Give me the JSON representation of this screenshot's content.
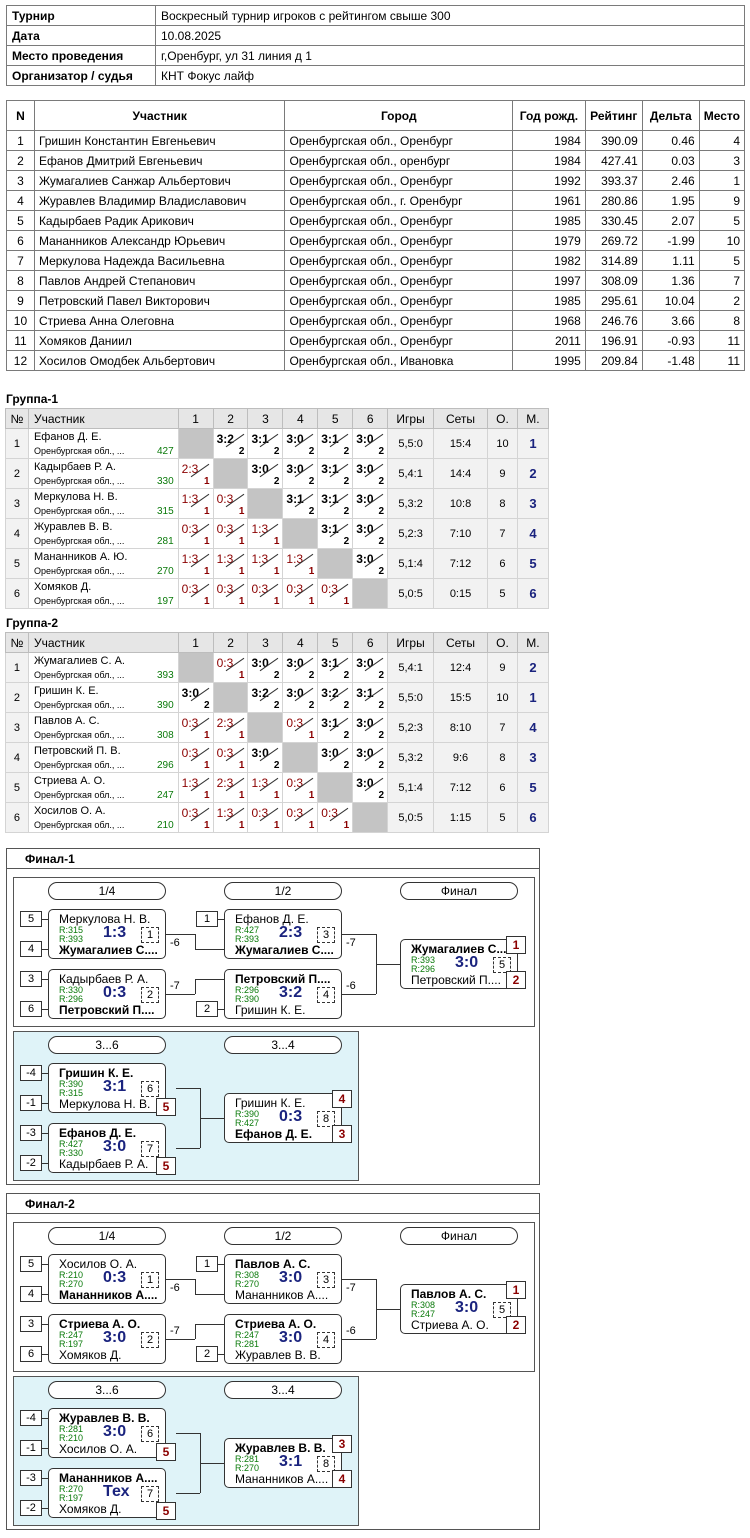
{
  "info": {
    "rows": [
      {
        "k": "Турнир",
        "v": "Воскресный турнир игроков с рейтингом свыше 300"
      },
      {
        "k": "Дата",
        "v": "10.08.2025"
      },
      {
        "k": "Место проведения",
        "v": "г,Оренбург, ул 31 линия д 1"
      },
      {
        "k": "Организатор / судья",
        "v": "КНТ Фокус лайф"
      }
    ]
  },
  "participants": {
    "headers": [
      "N",
      "Участник",
      "Город",
      "Год рожд.",
      "Рейтинг",
      "Дельта",
      "Место"
    ],
    "rows": [
      [
        "1",
        "Гришин Константин Евгеньевич",
        "Оренбургская обл., Оренбург",
        "1984",
        "390.09",
        "0.46",
        "4"
      ],
      [
        "2",
        "Ефанов Дмитрий Евгеньевич",
        "Оренбургская обл., оренбург",
        "1984",
        "427.41",
        "0.03",
        "3"
      ],
      [
        "3",
        "Жумагалиев Санжар Альбертович",
        "Оренбургская обл., Оренбург",
        "1992",
        "393.37",
        "2.46",
        "1"
      ],
      [
        "4",
        "Журавлев Владимир Владиславович",
        "Оренбургская обл., г. Оренбург",
        "1961",
        "280.86",
        "1.95",
        "9"
      ],
      [
        "5",
        "Кадырбаев Радик Арикович",
        "Оренбургская обл., Оренбург",
        "1985",
        "330.45",
        "2.07",
        "5"
      ],
      [
        "6",
        "Мананников Александр Юрьевич",
        "Оренбургская обл., Оренбург",
        "1979",
        "269.72",
        "-1.99",
        "10"
      ],
      [
        "7",
        "Меркулова Надежда Васильевна",
        "Оренбургская обл., Оренбург",
        "1982",
        "314.89",
        "1.11",
        "5"
      ],
      [
        "8",
        "Павлов Андрей Степанович",
        "Оренбургская обл., Оренбург",
        "1997",
        "308.09",
        "1.36",
        "7"
      ],
      [
        "9",
        "Петровский Павел Викторович",
        "Оренбургская обл., Оренбург",
        "1985",
        "295.61",
        "10.04",
        "2"
      ],
      [
        "10",
        "Стриева Анна Олеговна",
        "Оренбургская обл., Оренбург",
        "1968",
        "246.76",
        "3.66",
        "8"
      ],
      [
        "11",
        "Хомяков Даниил",
        "Оренбургская обл., Оренбург",
        "2011",
        "196.91",
        "-0.93",
        "11"
      ],
      [
        "12",
        "Хосилов Омодбек Альбертович",
        "Оренбургская обл., Ивановка",
        "1995",
        "209.84",
        "-1.48",
        "11"
      ]
    ]
  },
  "groups": [
    {
      "title": "Группа-1",
      "headers": [
        "№",
        "Участник",
        "1",
        "2",
        "3",
        "4",
        "5",
        "6",
        "Игры",
        "Сеты",
        "О.",
        "М."
      ],
      "rows": [
        {
          "n": "1",
          "name": "Ефанов Д. Е.",
          "city": "Оренбургская обл., ...",
          "rating": "427",
          "cells": [
            null,
            [
              "3:2",
              "2"
            ],
            [
              "3:1",
              "2"
            ],
            [
              "3:0",
              "2"
            ],
            [
              "3:1",
              "2"
            ],
            [
              "3:0",
              "2"
            ]
          ],
          "games": "5,5:0",
          "sets": "15:4",
          "o": "10",
          "m": "1"
        },
        {
          "n": "2",
          "name": "Кадырбаев Р. А.",
          "city": "Оренбургская обл., ...",
          "rating": "330",
          "cells": [
            [
              "2:3",
              "1"
            ],
            null,
            [
              "3:0",
              "2"
            ],
            [
              "3:0",
              "2"
            ],
            [
              "3:1",
              "2"
            ],
            [
              "3:0",
              "2"
            ]
          ],
          "games": "5,4:1",
          "sets": "14:4",
          "o": "9",
          "m": "2"
        },
        {
          "n": "3",
          "name": "Меркулова Н. В.",
          "city": "Оренбургская обл., ...",
          "rating": "315",
          "cells": [
            [
              "1:3",
              "1"
            ],
            [
              "0:3",
              "1"
            ],
            null,
            [
              "3:1",
              "2"
            ],
            [
              "3:1",
              "2"
            ],
            [
              "3:0",
              "2"
            ]
          ],
          "games": "5,3:2",
          "sets": "10:8",
          "o": "8",
          "m": "3"
        },
        {
          "n": "4",
          "name": "Журавлев В. В.",
          "city": "Оренбургская обл., ...",
          "rating": "281",
          "cells": [
            [
              "0:3",
              "1"
            ],
            [
              "0:3",
              "1"
            ],
            [
              "1:3",
              "1"
            ],
            null,
            [
              "3:1",
              "2"
            ],
            [
              "3:0",
              "2"
            ]
          ],
          "games": "5,2:3",
          "sets": "7:10",
          "o": "7",
          "m": "4"
        },
        {
          "n": "5",
          "name": "Мананников А. Ю.",
          "city": "Оренбургская обл., ...",
          "rating": "270",
          "cells": [
            [
              "1:3",
              "1"
            ],
            [
              "1:3",
              "1"
            ],
            [
              "1:3",
              "1"
            ],
            [
              "1:3",
              "1"
            ],
            null,
            [
              "3:0",
              "2"
            ]
          ],
          "games": "5,1:4",
          "sets": "7:12",
          "o": "6",
          "m": "5"
        },
        {
          "n": "6",
          "name": "Хомяков Д.",
          "city": "Оренбургская обл., ...",
          "rating": "197",
          "cells": [
            [
              "0:3",
              "1"
            ],
            [
              "0:3",
              "1"
            ],
            [
              "0:3",
              "1"
            ],
            [
              "0:3",
              "1"
            ],
            [
              "0:3",
              "1"
            ],
            null
          ],
          "games": "5,0:5",
          "sets": "0:15",
          "o": "5",
          "m": "6"
        }
      ]
    },
    {
      "title": "Группа-2",
      "headers": [
        "№",
        "Участник",
        "1",
        "2",
        "3",
        "4",
        "5",
        "6",
        "Игры",
        "Сеты",
        "О.",
        "М."
      ],
      "rows": [
        {
          "n": "1",
          "name": "Жумагалиев С. А.",
          "city": "Оренбургская обл., ...",
          "rating": "393",
          "cells": [
            null,
            [
              "0:3",
              "1"
            ],
            [
              "3:0",
              "2"
            ],
            [
              "3:0",
              "2"
            ],
            [
              "3:1",
              "2"
            ],
            [
              "3:0",
              "2"
            ]
          ],
          "games": "5,4:1",
          "sets": "12:4",
          "o": "9",
          "m": "2"
        },
        {
          "n": "2",
          "name": "Гришин К. Е.",
          "city": "Оренбургская обл., ...",
          "rating": "390",
          "cells": [
            [
              "3:0",
              "2"
            ],
            null,
            [
              "3:2",
              "2"
            ],
            [
              "3:0",
              "2"
            ],
            [
              "3:2",
              "2"
            ],
            [
              "3:1",
              "2"
            ]
          ],
          "games": "5,5:0",
          "sets": "15:5",
          "o": "10",
          "m": "1"
        },
        {
          "n": "3",
          "name": "Павлов А. С.",
          "city": "Оренбургская обл., ...",
          "rating": "308",
          "cells": [
            [
              "0:3",
              "1"
            ],
            [
              "2:3",
              "1"
            ],
            null,
            [
              "0:3",
              "1"
            ],
            [
              "3:1",
              "2"
            ],
            [
              "3:0",
              "2"
            ]
          ],
          "games": "5,2:3",
          "sets": "8:10",
          "o": "7",
          "m": "4"
        },
        {
          "n": "4",
          "name": "Петровский П. В.",
          "city": "Оренбургская обл., ...",
          "rating": "296",
          "cells": [
            [
              "0:3",
              "1"
            ],
            [
              "0:3",
              "1"
            ],
            [
              "3:0",
              "2"
            ],
            null,
            [
              "3:0",
              "2"
            ],
            [
              "3:0",
              "2"
            ]
          ],
          "games": "5,3:2",
          "sets": "9:6",
          "o": "8",
          "m": "3"
        },
        {
          "n": "5",
          "name": "Стриева А. О.",
          "city": "Оренбургская обл., ...",
          "rating": "247",
          "cells": [
            [
              "1:3",
              "1"
            ],
            [
              "2:3",
              "1"
            ],
            [
              "1:3",
              "1"
            ],
            [
              "0:3",
              "1"
            ],
            null,
            [
              "3:0",
              "2"
            ]
          ],
          "games": "5,1:4",
          "sets": "7:12",
          "o": "6",
          "m": "5"
        },
        {
          "n": "6",
          "name": "Хосилов О. А.",
          "city": "Оренбургская обл., ...",
          "rating": "210",
          "cells": [
            [
              "0:3",
              "1"
            ],
            [
              "1:3",
              "1"
            ],
            [
              "0:3",
              "1"
            ],
            [
              "0:3",
              "1"
            ],
            [
              "0:3",
              "1"
            ],
            null
          ],
          "games": "5,0:5",
          "sets": "1:15",
          "o": "5",
          "m": "6"
        }
      ]
    }
  ],
  "finals": [
    {
      "title": "Финал-1",
      "labels": {
        "qf": "1/4",
        "sf": "1/2",
        "final": "Финал",
        "c36": "3...6",
        "c34": "3...4"
      },
      "seeds": {
        "qf1a": "5",
        "qf1b": "4",
        "qf2a": "3",
        "qf2b": "6",
        "sf1": "1",
        "sf2": "2",
        "c1a": "-4",
        "c1b": "-1",
        "c2a": "-3",
        "c2b": "-2"
      },
      "losers": {
        "qf1": "-6",
        "qf2": "-7",
        "sf1": "-7",
        "sf2": "-6"
      },
      "matches": {
        "qf1": {
          "p1": "Меркулова Н. В.",
          "r1": "R:315",
          "p2": "Жумагалиев С....",
          "r2": "R:393",
          "score": "1:3",
          "num": "1",
          "win": 2
        },
        "qf2": {
          "p1": "Кадырбаев Р. А.",
          "r1": "R:330",
          "p2": "Петровский П....",
          "r2": "R:296",
          "score": "0:3",
          "num": "2",
          "win": 2
        },
        "sf1": {
          "p1": "Ефанов Д. Е.",
          "r1": "R:427",
          "p2": "Жумагалиев С....",
          "r2": "R:393",
          "score": "2:3",
          "num": "3",
          "win": 2
        },
        "sf2": {
          "p1": "Петровский П....",
          "r1": "R:296",
          "p2": "Гришин К. Е.",
          "r2": "R:390",
          "score": "3:2",
          "num": "4",
          "win": 1
        },
        "fin": {
          "p1": "Жумагалиев С....",
          "r1": "R:393",
          "p2": "Петровский П....",
          "r2": "R:296",
          "score": "3:0",
          "num": "5",
          "win": 1,
          "place1": "1",
          "place2": "2"
        },
        "c1": {
          "p1": "Гришин К. Е.",
          "r1": "R:390",
          "p2": "Меркулова Н. В.",
          "r2": "R:315",
          "score": "3:1",
          "num": "6",
          "win": 1,
          "place": "5"
        },
        "c2": {
          "p1": "Ефанов Д. Е.",
          "r1": "R:427",
          "p2": "Кадырбаев Р. А.",
          "r2": "R:330",
          "score": "3:0",
          "num": "7",
          "win": 1,
          "place": "5"
        },
        "c34": {
          "p1": "Гришин К. Е.",
          "r1": "R:390",
          "p2": "Ефанов Д. Е.",
          "r2": "R:427",
          "score": "0:3",
          "num": "8",
          "win": 2,
          "place1": "4",
          "place2": "3"
        }
      }
    },
    {
      "title": "Финал-2",
      "labels": {
        "qf": "1/4",
        "sf": "1/2",
        "final": "Финал",
        "c36": "3...6",
        "c34": "3...4"
      },
      "seeds": {
        "qf1a": "5",
        "qf1b": "4",
        "qf2a": "3",
        "qf2b": "6",
        "sf1": "1",
        "sf2": "2",
        "c1a": "-4",
        "c1b": "-1",
        "c2a": "-3",
        "c2b": "-2"
      },
      "losers": {
        "qf1": "-6",
        "qf2": "-7",
        "sf1": "-7",
        "sf2": "-6"
      },
      "matches": {
        "qf1": {
          "p1": "Хосилов О. А.",
          "r1": "R:210",
          "p2": "Мананников А....",
          "r2": "R:270",
          "score": "0:3",
          "num": "1",
          "win": 2
        },
        "qf2": {
          "p1": "Стриева А. О.",
          "r1": "R:247",
          "p2": "Хомяков Д.",
          "r2": "R:197",
          "score": "3:0",
          "num": "2",
          "win": 1
        },
        "sf1": {
          "p1": "Павлов А. С.",
          "r1": "R:308",
          "p2": "Мананников А....",
          "r2": "R:270",
          "score": "3:0",
          "num": "3",
          "win": 1
        },
        "sf2": {
          "p1": "Стриева А. О.",
          "r1": "R:247",
          "p2": "Журавлев В. В.",
          "r2": "R:281",
          "score": "3:0",
          "num": "4",
          "win": 1
        },
        "fin": {
          "p1": "Павлов А. С.",
          "r1": "R:308",
          "p2": "Стриева А. О.",
          "r2": "R:247",
          "score": "3:0",
          "num": "5",
          "win": 1,
          "place1": "1",
          "place2": "2"
        },
        "c1": {
          "p1": "Журавлев В. В.",
          "r1": "R:281",
          "p2": "Хосилов О. А.",
          "r2": "R:210",
          "score": "3:0",
          "num": "6",
          "win": 1,
          "place": "5"
        },
        "c2": {
          "p1": "Мананников А....",
          "r1": "R:270",
          "p2": "Хомяков Д.",
          "r2": "R:197",
          "score": "Тех",
          "num": "7",
          "win": 1,
          "place": "5"
        },
        "c34": {
          "p1": "Журавлев В. В.",
          "r1": "R:281",
          "p2": "Мананников А....",
          "r2": "R:270",
          "score": "3:1",
          "num": "8",
          "win": 1,
          "place1": "3",
          "place2": "4"
        }
      }
    }
  ]
}
